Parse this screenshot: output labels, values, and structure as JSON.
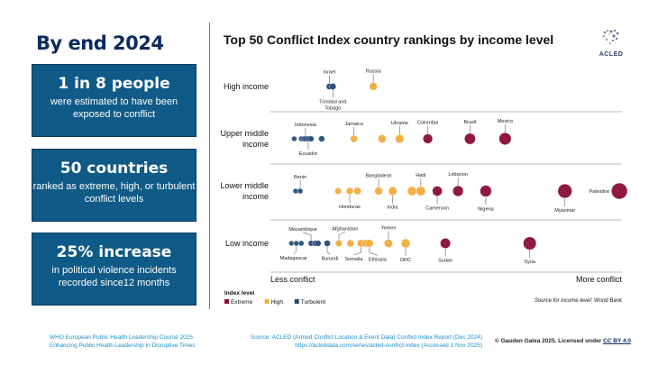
{
  "left": {
    "title": "By end 2024",
    "boxes": [
      {
        "big": "1 in 8 people",
        "small": "were estimated to have been exposed to conflict"
      },
      {
        "big": "50 countries",
        "small": "ranked as extreme, high, or turbulent conflict levels"
      },
      {
        "big": "25% increase",
        "small": "in political violence incidents recorded since12 months"
      }
    ]
  },
  "logo": {
    "text": "ACLED"
  },
  "chart_data": {
    "type": "scatter",
    "title": "Top 50 Conflict Index country rankings by income level",
    "x_axis": {
      "left_label": "Less conflict",
      "right_label": "More conflict",
      "range": [
        0,
        100
      ]
    },
    "legend": {
      "title": "Index level",
      "placement": "bottom-left",
      "entries": [
        {
          "level": "extreme",
          "label": "Extreme",
          "color": "#8b0d3a"
        },
        {
          "level": "high",
          "label": "High",
          "color": "#f2ac3c"
        },
        {
          "level": "turbulent",
          "label": "Turbulent",
          "color": "#274c74"
        }
      ]
    },
    "source_note": "Source for income level: World Bank",
    "rows": [
      {
        "label": [
          "High income"
        ],
        "points": [
          {
            "v": 16,
            "level": "turbulent",
            "name": "Israel",
            "pos": "above"
          },
          {
            "v": 17,
            "level": "turbulent",
            "name": "Trinidad and Tobago",
            "pos": "below"
          },
          {
            "v": 28.5,
            "level": "high",
            "name": "Russia",
            "pos": "above"
          }
        ]
      },
      {
        "label": [
          "Upper middle",
          "income"
        ],
        "points": [
          {
            "v": 6,
            "level": "turbulent"
          },
          {
            "v": 8,
            "level": "turbulent"
          },
          {
            "v": 8.7,
            "level": "turbulent"
          },
          {
            "v": 9.2,
            "level": "turbulent",
            "name": "Indonesia",
            "pos": "above"
          },
          {
            "v": 10,
            "level": "turbulent",
            "name": "Ecuador",
            "pos": "below"
          },
          {
            "v": 10.8,
            "level": "turbulent"
          },
          {
            "v": 13.8,
            "level": "turbulent"
          },
          {
            "v": 23,
            "level": "high",
            "name": "Jamaica",
            "pos": "above"
          },
          {
            "v": 31,
            "level": "high"
          },
          {
            "v": 36,
            "level": "high",
            "name": "Ukraine",
            "pos": "above"
          },
          {
            "v": 44,
            "level": "extreme",
            "name": "Colombia",
            "pos": "above"
          },
          {
            "v": 56,
            "level": "extreme",
            "name": "Brazil",
            "pos": "above"
          },
          {
            "v": 66,
            "level": "extreme",
            "name": "Mexico",
            "pos": "above"
          }
        ]
      },
      {
        "label": [
          "Lower middle",
          "income"
        ],
        "points": [
          {
            "v": 6.4,
            "level": "turbulent"
          },
          {
            "v": 7.7,
            "level": "turbulent",
            "name": "Benin",
            "pos": "above"
          },
          {
            "v": 18.5,
            "level": "high"
          },
          {
            "v": 21.8,
            "level": "high",
            "name": "Honduras",
            "pos": "below"
          },
          {
            "v": 24,
            "level": "high"
          },
          {
            "v": 30,
            "level": "high",
            "name": "Bangladesh",
            "pos": "above"
          },
          {
            "v": 34,
            "level": "high",
            "name": "India",
            "pos": "below"
          },
          {
            "v": 39.5,
            "level": "high"
          },
          {
            "v": 42,
            "level": "high",
            "name": "Haiti",
            "pos": "above"
          },
          {
            "v": 46.7,
            "level": "extreme",
            "name": "Cameroon",
            "pos": "below"
          },
          {
            "v": 52.6,
            "level": "extreme",
            "name": "Lebanon",
            "pos": "above"
          },
          {
            "v": 60.5,
            "level": "extreme",
            "name": "Nigeria",
            "pos": "below"
          },
          {
            "v": 83,
            "level": "extreme",
            "name": "Myanmar",
            "pos": "below"
          },
          {
            "v": 98.5,
            "level": "extreme",
            "name": "Palestine",
            "pos": "left"
          }
        ]
      },
      {
        "label": [
          "Low income"
        ],
        "points": [
          {
            "v": 5.2,
            "level": "turbulent"
          },
          {
            "v": 6.6,
            "level": "turbulent",
            "name": "Madagascar",
            "pos": "below"
          },
          {
            "v": 8,
            "level": "turbulent"
          },
          {
            "v": 10.8,
            "level": "turbulent",
            "name": "Mozambique",
            "pos": "above"
          },
          {
            "v": 12,
            "level": "turbulent"
          },
          {
            "v": 12.8,
            "level": "turbulent"
          },
          {
            "v": 15.4,
            "level": "turbulent",
            "name": "Burundi",
            "pos": "below"
          },
          {
            "v": 18.7,
            "level": "high",
            "name": "Afghanistan",
            "pos": "above"
          },
          {
            "v": 22,
            "level": "high"
          },
          {
            "v": 25,
            "level": "high",
            "name": "Somalia",
            "pos": "below"
          },
          {
            "v": 26.4,
            "level": "high"
          },
          {
            "v": 27.4,
            "level": "high",
            "name": "Ethiopia",
            "pos": "below"
          },
          {
            "v": 32.8,
            "level": "high",
            "name": "Yemen",
            "pos": "above"
          },
          {
            "v": 37.7,
            "level": "high",
            "name": "DRC",
            "pos": "below"
          },
          {
            "v": 49,
            "level": "extreme",
            "name": "Sudan",
            "pos": "below"
          },
          {
            "v": 73,
            "level": "extreme",
            "name": "Syria",
            "pos": "below"
          }
        ]
      }
    ]
  },
  "footer": {
    "course_line1": "WHO European Public Health Leadership Course 2025",
    "course_line2": "Enhancing Public Health Leadership in Disruptive Times",
    "source_line1": "Source: ACLED (Armed Conflict Location & Event Data) Conflict Index Report (Dec 2024)",
    "source_line2": "https://acleddata.com/series/acled-conflict-index (Accessed 3 Nov 2025)",
    "copyright": "© Gauden Galea 2025. Licensed under ",
    "license_link": "CC BY 4.0"
  }
}
